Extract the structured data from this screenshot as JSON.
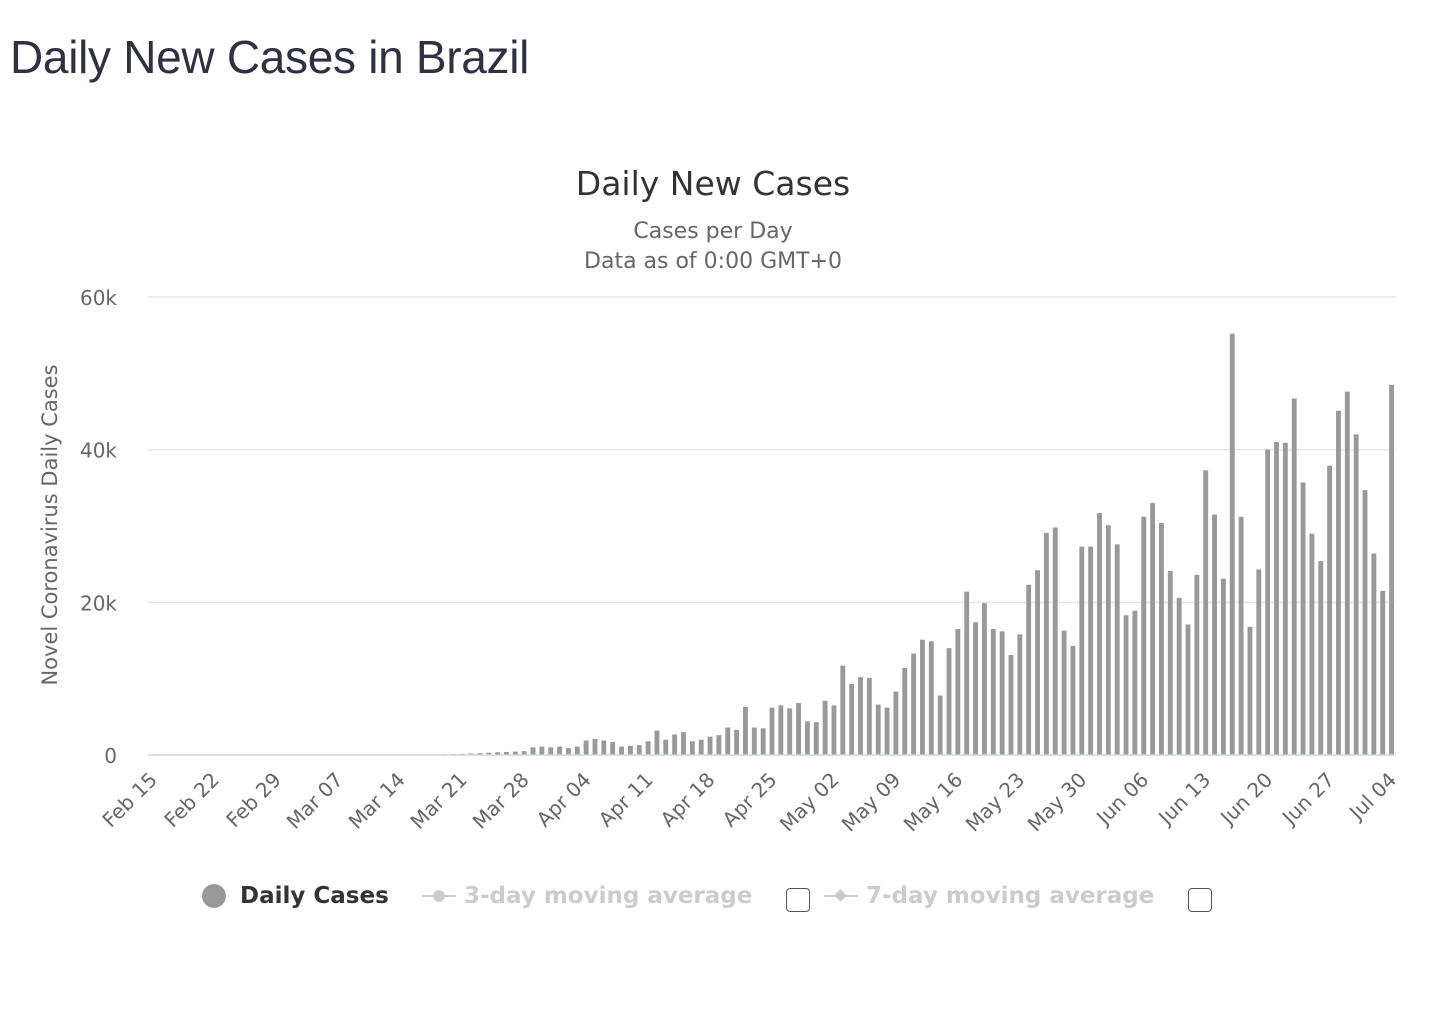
{
  "page": {
    "title": "Daily New Cases in Brazil"
  },
  "chart_data": {
    "type": "bar",
    "title": "Daily New Cases",
    "subtitle_lines": [
      "Cases per Day",
      "Data as of 0:00 GMT+0"
    ],
    "ylabel": "Novel Coronavirus Daily Cases",
    "xlabel": "",
    "ylim": [
      0,
      60000
    ],
    "y_ticks": [
      0,
      20000,
      40000,
      60000
    ],
    "y_tick_labels": [
      "0",
      "20k",
      "40k",
      "60k"
    ],
    "x_start": "Feb 15",
    "x_tick_labels": [
      "Feb 15",
      "Feb 22",
      "Feb 29",
      "Mar 07",
      "Mar 14",
      "Mar 21",
      "Mar 28",
      "Apr 04",
      "Apr 11",
      "Apr 18",
      "Apr 25",
      "May 02",
      "May 09",
      "May 16",
      "May 23",
      "May 30",
      "Jun 06",
      "Jun 13",
      "Jun 20",
      "Jun 27",
      "Jul 04"
    ],
    "grid": true,
    "bar_color": "#999999",
    "series": [
      {
        "name": "Daily Cases",
        "values": [
          0,
          0,
          0,
          0,
          0,
          0,
          0,
          0,
          0,
          0,
          0,
          1,
          0,
          0,
          0,
          1,
          0,
          0,
          0,
          0,
          2,
          5,
          9,
          12,
          3,
          10,
          25,
          23,
          44,
          40,
          50,
          62,
          80,
          100,
          120,
          150,
          200,
          250,
          300,
          350,
          400,
          450,
          500,
          1000,
          1100,
          1000,
          1100,
          900,
          1100,
          1900,
          2100,
          1900,
          1700,
          1100,
          1200,
          1300,
          1800,
          3200,
          2000,
          2700,
          3000,
          1800,
          2000,
          2400,
          2600,
          3600,
          3300,
          6300,
          3600,
          3500,
          6200,
          6500,
          6100,
          6800,
          4400,
          4300,
          7100,
          6500,
          11700,
          9300,
          10200,
          10100,
          6600,
          6200,
          8300,
          11400,
          13300,
          15100,
          14900,
          7800,
          14000,
          16500,
          21400,
          17400,
          19900,
          16500,
          16200,
          13100,
          15800,
          22300,
          24200,
          29100,
          29800,
          16300,
          14300,
          27300,
          27300,
          31700,
          30100,
          27600,
          18300,
          18900,
          31200,
          33000,
          30400,
          24100,
          20600,
          17100,
          23600,
          37300,
          31500,
          23100,
          55200,
          31200,
          16800,
          24300,
          40000,
          41000,
          40900,
          46700,
          35700,
          29000,
          25400,
          37900,
          45100,
          47600,
          42000,
          34700,
          26400,
          21500,
          48500
        ]
      },
      {
        "name": "3-day moving average",
        "visible": false
      },
      {
        "name": "7-day moving average",
        "visible": false
      }
    ]
  },
  "legend": {
    "items": [
      {
        "label": "Daily Cases",
        "color": "#999999",
        "active": true
      },
      {
        "label": "3-day moving average",
        "color": "#cccccc",
        "active": false
      },
      {
        "label": "7-day moving average",
        "color": "#cccccc",
        "active": false
      }
    ]
  }
}
